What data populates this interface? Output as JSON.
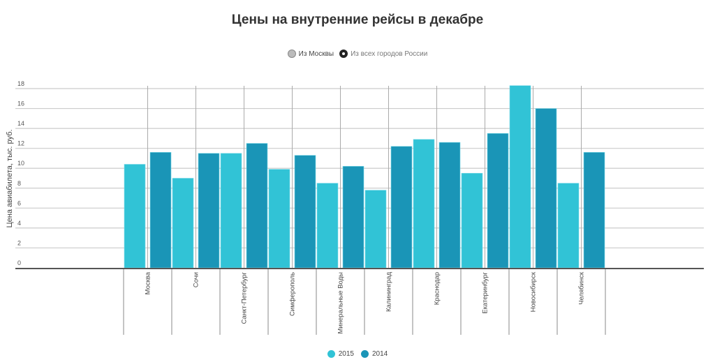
{
  "chart_data": {
    "type": "bar",
    "title": "Цены на внутренние рейсы в декабре",
    "xlabel": "",
    "ylabel": "Цена авиабилета, тыс. руб.",
    "ylim": [
      0,
      18
    ],
    "yticks": [
      0,
      2,
      4,
      6,
      8,
      10,
      12,
      14,
      16,
      18
    ],
    "grid": true,
    "legend_position": "bottom",
    "categories": [
      "Москва",
      "Сочи",
      "Санкт-Петербург",
      "Симферополь",
      "Минеральные Воды",
      "Калининград",
      "Краснодар",
      "Екатеринбург",
      "Новосибирск",
      "Челябинск"
    ],
    "series": [
      {
        "name": "2015",
        "color": "#31c3d6",
        "values": [
          10.4,
          9.0,
          11.5,
          9.9,
          8.5,
          7.8,
          12.9,
          9.5,
          18.3,
          8.5
        ]
      },
      {
        "name": "2014",
        "color": "#1a95b7",
        "values": [
          11.6,
          11.5,
          12.5,
          11.3,
          10.2,
          12.2,
          12.6,
          13.5,
          16.0,
          11.6
        ]
      }
    ]
  },
  "toggle": {
    "options": [
      "Из Москвы",
      "Из всех городов России"
    ],
    "selected": "Из всех городов России"
  }
}
